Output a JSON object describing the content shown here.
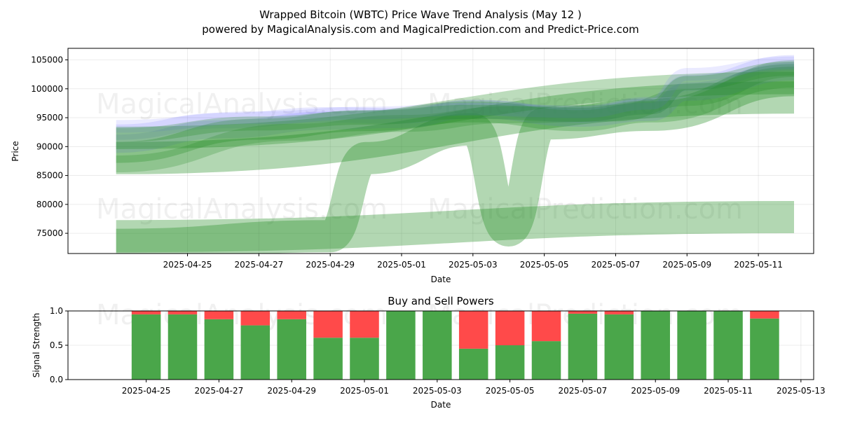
{
  "header": {
    "title": "Wrapped Bitcoin (WBTC) Price Wave Trend Analysis (May 12 )",
    "subtitle": "powered by MagicalAnalysis.com and MagicalPrediction.com and Predict-Price.com"
  },
  "watermarks": [
    "MagicalAnalysis.com",
    "MagicalPrediction.com"
  ],
  "colors": {
    "buy": "#4aa64a",
    "sell": "#ff4a4a",
    "wave_green": "#228b22",
    "wave_blue": "#6a6aff"
  },
  "chart_data": [
    {
      "type": "area",
      "title": "",
      "xlabel": "Date",
      "ylabel": "Price",
      "xlim": [
        "2025-04-22",
        "2025-05-12"
      ],
      "ylim": [
        71500,
        107000
      ],
      "x_ticks": [
        "2025-04-25",
        "2025-04-27",
        "2025-04-29",
        "2025-05-01",
        "2025-05-03",
        "2025-05-05",
        "2025-05-07",
        "2025-05-09",
        "2025-05-11"
      ],
      "y_ticks": [
        "75000",
        "80000",
        "85000",
        "90000",
        "95000",
        "100000",
        "105000"
      ],
      "grid": true,
      "series": [
        {
          "x": [
            "2025-04-23",
            "2025-05-12"
          ],
          "y": [
            88000,
            98500
          ]
        },
        {
          "x": [
            "2025-04-23",
            "2025-05-12"
          ],
          "y": [
            74500,
            77800
          ]
        },
        {
          "x": [
            "2025-04-23",
            "2025-04-29",
            "2025-04-30",
            "2025-05-03",
            "2025-05-04",
            "2025-05-05",
            "2025-05-08",
            "2025-05-12"
          ],
          "y": [
            73000,
            74500,
            88000,
            93000,
            75500,
            94000,
            95500,
            101500
          ]
        },
        {
          "x": [
            "2025-04-23",
            "2025-04-26",
            "2025-04-29",
            "2025-05-01",
            "2025-05-03",
            "2025-05-06",
            "2025-05-08",
            "2025-05-09",
            "2025-05-12"
          ],
          "y": [
            90500,
            93000,
            94500,
            94800,
            96500,
            95000,
            96000,
            99500,
            103000
          ]
        },
        {
          "x": [
            "2025-04-23",
            "2025-04-26",
            "2025-04-29",
            "2025-05-01",
            "2025-05-03",
            "2025-05-06",
            "2025-05-08",
            "2025-05-09",
            "2025-05-12"
          ],
          "y": [
            92500,
            94500,
            95500,
            95300,
            96800,
            95500,
            97000,
            101000,
            104500
          ]
        },
        {
          "x": [
            "2025-04-23",
            "2025-04-27",
            "2025-04-30",
            "2025-05-03",
            "2025-05-06",
            "2025-05-08",
            "2025-05-12"
          ],
          "y": [
            89000,
            93000,
            94500,
            96000,
            94500,
            96000,
            102000
          ]
        },
        {
          "x": [
            "2025-04-23",
            "2025-05-12"
          ],
          "y": [
            91500,
            101000
          ]
        },
        {
          "x": [
            "2025-04-23",
            "2025-04-28",
            "2025-05-01",
            "2025-05-04",
            "2025-05-07",
            "2025-05-09",
            "2025-05-12"
          ],
          "y": [
            87000,
            92500,
            94000,
            95500,
            95800,
            98500,
            103500
          ]
        },
        {
          "x": [
            "2025-04-23",
            "2025-04-27",
            "2025-04-30",
            "2025-05-03",
            "2025-05-06",
            "2025-05-08",
            "2025-05-09",
            "2025-05-12"
          ],
          "y": [
            93500,
            95000,
            95800,
            96500,
            96000,
            97500,
            102500,
            104500
          ]
        },
        {
          "x": [
            "2025-04-23",
            "2025-04-27",
            "2025-04-30",
            "2025-05-03",
            "2025-05-06",
            "2025-05-08",
            "2025-05-09",
            "2025-05-12"
          ],
          "y": [
            92000,
            94000,
            95000,
            96000,
            95500,
            96800,
            101000,
            103500
          ]
        }
      ]
    },
    {
      "type": "bar",
      "title": "Buy and Sell Powers",
      "xlabel": "Date",
      "ylabel": "Signal Strength",
      "xlim": [
        "2025-04-23",
        "2025-05-13"
      ],
      "ylim": [
        0,
        1
      ],
      "x_ticks": [
        "2025-04-25",
        "2025-04-27",
        "2025-04-29",
        "2025-05-01",
        "2025-05-03",
        "2025-05-05",
        "2025-05-07",
        "2025-05-09",
        "2025-05-11",
        "2025-05-13"
      ],
      "y_ticks": [
        "0.0",
        "0.5",
        "1.0"
      ],
      "grid": true,
      "categories": [
        "2025-04-25",
        "2025-04-26",
        "2025-04-27",
        "2025-04-28",
        "2025-04-29",
        "2025-04-30",
        "2025-05-01",
        "2025-05-02",
        "2025-05-03",
        "2025-05-04",
        "2025-05-05",
        "2025-05-06",
        "2025-05-07",
        "2025-05-08",
        "2025-05-09",
        "2025-05-10",
        "2025-05-11",
        "2025-05-12"
      ],
      "series": [
        {
          "values": [
            0.95,
            0.95,
            0.88,
            0.79,
            0.88,
            0.61,
            0.61,
            1.0,
            1.0,
            0.45,
            0.5,
            0.56,
            0.96,
            0.95,
            1.0,
            1.0,
            1.0,
            0.89
          ]
        },
        {
          "values": [
            0.05,
            0.05,
            0.12,
            0.21,
            0.12,
            0.39,
            0.39,
            0.0,
            0.0,
            0.55,
            0.5,
            0.44,
            0.04,
            0.05,
            0.0,
            0.0,
            0.0,
            0.11
          ]
        }
      ]
    }
  ]
}
